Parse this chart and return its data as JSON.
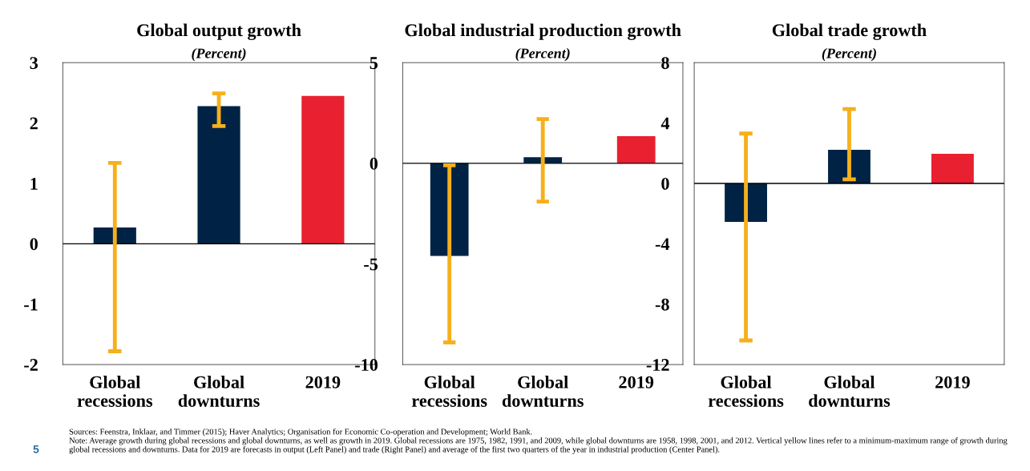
{
  "chart_data": [
    {
      "type": "bar",
      "title": "Global output growth",
      "subtitle": "(Percent)",
      "categories": [
        "Global\nrecessions",
        "Global\ndownturns",
        "2019"
      ],
      "values": [
        0.27,
        2.28,
        2.45
      ],
      "colors": [
        "#002345",
        "#002345",
        "#e8202f"
      ],
      "errors": [
        [
          -1.78,
          1.34
        ],
        [
          1.95,
          2.49
        ],
        null
      ],
      "ylim": [
        -2,
        3
      ],
      "yticks": [
        -2,
        -1,
        0,
        1,
        2,
        3
      ],
      "grid": false,
      "ref_lines": [
        {
          "axis": "y",
          "value": 0,
          "color": "#000000"
        }
      ]
    },
    {
      "type": "bar",
      "title": "Global industrial production growth",
      "subtitle": "(Percent)",
      "categories": [
        "Global\nrecessions",
        "Global\ndownturns",
        "2019"
      ],
      "values": [
        -4.6,
        0.3,
        1.35
      ],
      "colors": [
        "#002345",
        "#002345",
        "#e8202f"
      ],
      "errors": [
        [
          -8.9,
          -0.1
        ],
        [
          -1.9,
          2.2
        ],
        null
      ],
      "ylim": [
        -10,
        5
      ],
      "yticks": [
        -10,
        -5,
        0,
        5
      ],
      "grid": false,
      "ref_lines": [
        {
          "axis": "y",
          "value": 0,
          "color": "#000000"
        }
      ]
    },
    {
      "type": "bar",
      "title": "Global trade growth",
      "subtitle": "(Percent)",
      "categories": [
        "Global\nrecessions",
        "Global\ndownturns",
        "2019"
      ],
      "values": [
        -2.55,
        2.23,
        1.96
      ],
      "colors": [
        "#002345",
        "#002345",
        "#e8202f"
      ],
      "errors": [
        [
          -10.4,
          3.3
        ],
        [
          0.27,
          4.93
        ],
        null
      ],
      "ylim": [
        -12,
        8
      ],
      "yticks": [
        -12,
        -8,
        -4,
        0,
        4,
        8
      ],
      "grid": false,
      "ref_lines": [
        {
          "axis": "y",
          "value": 0,
          "color": "#000000"
        }
      ],
      "annotations": [
        "Sources: Feenstra, Inklaar, and Timmer (2015); Haver Analytics; Organisation for Economic Co-operation and Development; World Bank.",
        "Note: Average growth during global recessions and global downturns, as well as growth in 2019. Global recessions are 1975, 1982, 1991, and 2009, while global downturns are 1958, 1998, 2001, and 2012. Vertical yellow lines refer to a minimum-maximum range of growth during global recessions and downturns. Data for 2019 are forecasts in output (Left Panel) and trade (Right Panel) and average of the first two quarters of the year in industrial production (Center Panel).",
        "5"
      ]
    }
  ]
}
